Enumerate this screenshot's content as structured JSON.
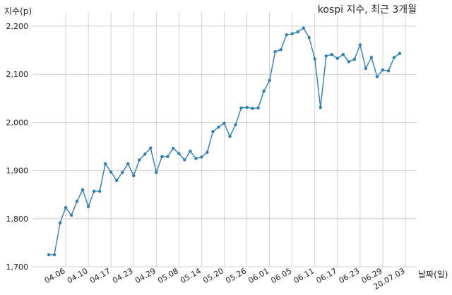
{
  "chart_data": {
    "type": "line",
    "title": "kospi 지수, 최근 3개월",
    "ylabel": "지수(p)",
    "xlabel": "날짜(일)",
    "ylim": [
      1700,
      2210
    ],
    "grid": true,
    "colors": {
      "line": "#2a7fb4"
    },
    "yticks": [
      {
        "value": 1700,
        "label": "1,700"
      },
      {
        "value": 1800,
        "label": "1,800"
      },
      {
        "value": 1900,
        "label": "1,900"
      },
      {
        "value": 2000,
        "label": "2,000"
      },
      {
        "value": 2100,
        "label": "2,100"
      },
      {
        "value": 2200,
        "label": "2,200"
      }
    ],
    "xticks": [
      {
        "index": 3,
        "label": "04.06"
      },
      {
        "index": 7,
        "label": "04.10"
      },
      {
        "index": 11,
        "label": "04.17"
      },
      {
        "index": 15,
        "label": "04.23"
      },
      {
        "index": 19,
        "label": "04.29"
      },
      {
        "index": 23,
        "label": "05.08"
      },
      {
        "index": 27,
        "label": "05.14"
      },
      {
        "index": 31,
        "label": "05.20"
      },
      {
        "index": 35,
        "label": "05.26"
      },
      {
        "index": 39,
        "label": "06.01"
      },
      {
        "index": 43,
        "label": "06.05"
      },
      {
        "index": 47,
        "label": "06.11"
      },
      {
        "index": 51,
        "label": "06.17"
      },
      {
        "index": 55,
        "label": "06.23"
      },
      {
        "index": 59,
        "label": "06.29"
      },
      {
        "index": 63,
        "label": "20.07.03"
      }
    ],
    "series": [
      {
        "values": [
          1725,
          1725,
          1791,
          1823,
          1807,
          1836,
          1860,
          1825,
          1857,
          1857,
          1914,
          1897,
          1879,
          1896,
          1914,
          1889,
          1922,
          1934,
          1947,
          1896,
          1929,
          1929,
          1946,
          1935,
          1922,
          1940,
          1925,
          1928,
          1938,
          1981,
          1990,
          1998,
          1971,
          1995,
          2030,
          2031,
          2029,
          2030,
          2065,
          2087,
          2147,
          2151,
          2182,
          2184,
          2188,
          2196,
          2176,
          2132,
          2031,
          2138,
          2141,
          2133,
          2141,
          2126,
          2131,
          2161,
          2112,
          2135,
          2095,
          2109,
          2107,
          2135,
          2143
        ]
      }
    ]
  }
}
